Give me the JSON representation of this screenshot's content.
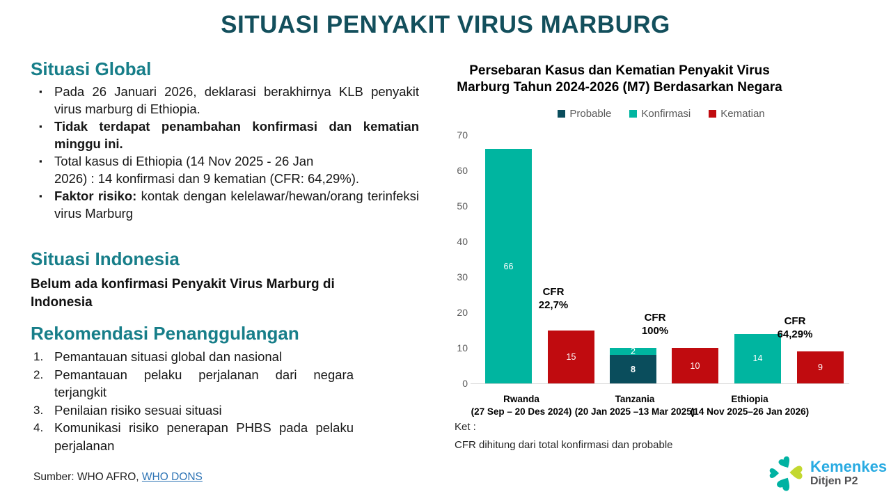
{
  "slide_title": "SITUASI PENYAKIT VIRUS MARBURG",
  "global_section": {
    "heading": "Situasi Global",
    "bullet1": "Pada 26 Januari 2026, deklarasi berakhirnya KLB penyakit virus marburg di Ethiopia.",
    "bullet2": "Tidak terdapat penambahan konfirmasi dan kematian minggu ini.",
    "bullet3_line1": "Total kasus di Ethiopia (14 Nov 2025 - 26 Jan",
    "bullet3_line2": "2026) : 14 konfirmasi dan 9 kematian (CFR: 64,29%).",
    "bullet4_bold": "Faktor risiko:",
    "bullet4_rest": " kontak dengan kelelawar/hewan/orang terinfeksi virus Marburg"
  },
  "indonesia_section": {
    "heading": "Situasi Indonesia",
    "text": "Belum ada konfirmasi Penyakit Virus Marburg di Indonesia"
  },
  "rekomendasi_section": {
    "heading": "Rekomendasi Penanggulangan",
    "items": [
      "Pemantauan situasi global dan nasional",
      "Pemantauan pelaku perjalanan dari negara terjangkit",
      "Penilaian risiko sesuai situasi",
      "Komunikasi risiko penerapan PHBS pada pelaku perjalanan"
    ]
  },
  "source": {
    "prefix": "Sumber: WHO AFRO,",
    "link_label": "WHO DONS"
  },
  "logo": {
    "brand": "Kemenkes",
    "subtitle": "Ditjen P2",
    "heart_teal": "#00b2a2",
    "heart_lime": "#c3d830"
  },
  "chart_data": {
    "type": "bar",
    "title": "Persebaran Kasus dan Kematian Penyakit Virus Marburg Tahun 2024-2026 (M7) Berdasarkan Negara",
    "title_lines": [
      "Persebaran Kasus dan Kematian Penyakit Virus",
      "Marburg Tahun 2024-2026 (M7) Berdasarkan Negara"
    ],
    "legend": [
      {
        "label": "Probable",
        "color": "#0a4d5c"
      },
      {
        "label": "Konfirmasi",
        "color": "#00b5a0"
      },
      {
        "label": "Kematian",
        "color": "#c00b0f"
      }
    ],
    "legend_position": "top",
    "grid": false,
    "ylim": [
      0,
      70
    ],
    "yticks": [
      0,
      10,
      20,
      30,
      40,
      50,
      60,
      70
    ],
    "cfr_label": "CFR",
    "categories": [
      {
        "name": "Rwanda",
        "period": "(27 Sep – 20 Des 2024)",
        "cfr": "22,7%"
      },
      {
        "name": "Tanzania",
        "period": "(20 Jan 2025 –13 Mar 2025)",
        "cfr": "100%"
      },
      {
        "name": "Ethiopia",
        "period": "(14 Nov 2025–26 Jan 2026)",
        "cfr": "64,29%"
      }
    ],
    "series": [
      {
        "name": "Probable",
        "values": [
          0,
          8,
          0
        ]
      },
      {
        "name": "Konfirmasi",
        "values": [
          66,
          2,
          14
        ]
      },
      {
        "name": "Kematian",
        "values": [
          15,
          10,
          9
        ]
      }
    ],
    "note_label": "Ket :",
    "note": "CFR dihitung dari total konfirmasi dan probable"
  }
}
